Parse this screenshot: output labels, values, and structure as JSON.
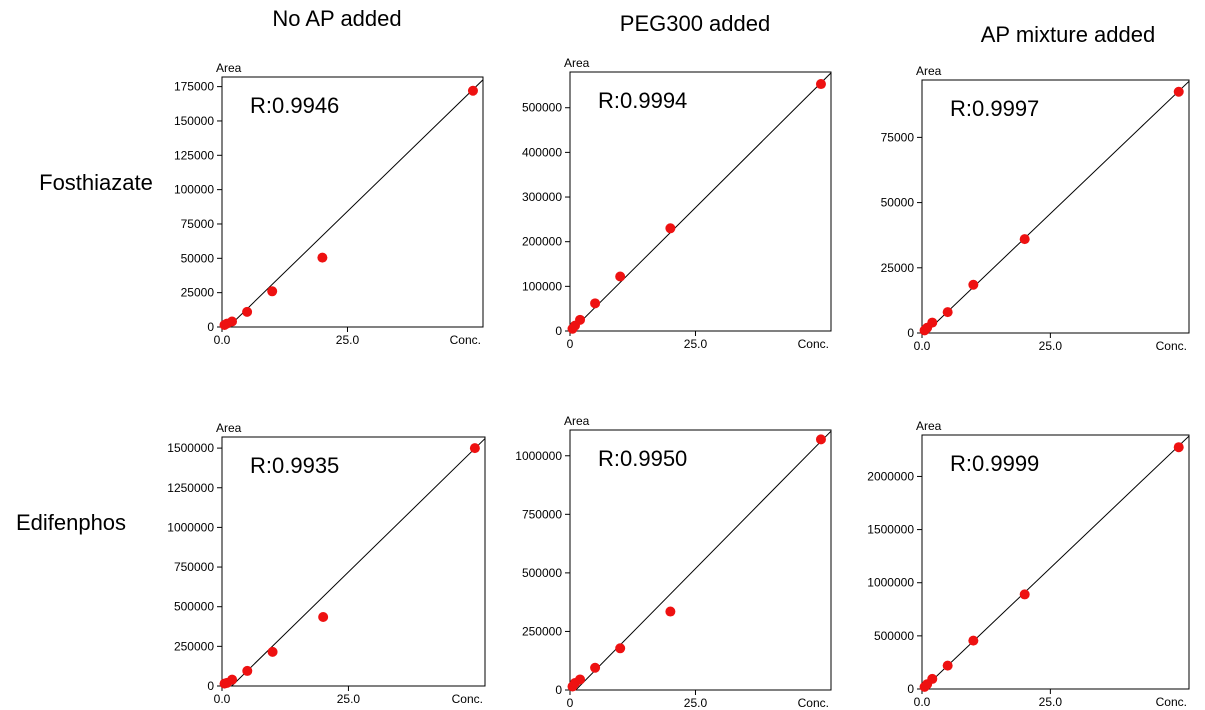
{
  "column_titles": [
    "No AP added",
    "PEG300 added",
    "AP mixture added"
  ],
  "row_titles": [
    "Fosthiazate",
    "Edifenphos"
  ],
  "chart_data": [
    {
      "type": "scatter",
      "row": 0,
      "col": 0,
      "r_text": "R:0.9946",
      "xlabel": "Conc.",
      "ylabel": "Area",
      "xlim": [
        0,
        52
      ],
      "ylim": [
        0,
        182000
      ],
      "x_ticks": [
        0,
        25
      ],
      "x_tick_labels": [
        "0.0",
        "25.0"
      ],
      "y_ticks": [
        0,
        25000,
        50000,
        75000,
        100000,
        125000,
        150000,
        175000
      ],
      "y_tick_labels": [
        "0",
        "25000",
        "50000",
        "75000",
        "100000",
        "125000",
        "150000",
        "175000"
      ],
      "points": [
        [
          0.5,
          1500
        ],
        [
          1,
          2500
        ],
        [
          2,
          4000
        ],
        [
          5,
          11000
        ],
        [
          10,
          26000
        ],
        [
          20,
          50500
        ],
        [
          50,
          172000
        ]
      ],
      "fit_line": [
        [
          0,
          -4500
        ],
        [
          52,
          180000
        ]
      ]
    },
    {
      "type": "scatter",
      "row": 0,
      "col": 1,
      "r_text": "R:0.9994",
      "xlabel": "Conc.",
      "ylabel": "Area",
      "xlim": [
        0,
        52
      ],
      "ylim": [
        0,
        580000
      ],
      "x_ticks": [
        0,
        25
      ],
      "x_tick_labels": [
        "0",
        "25.0"
      ],
      "y_ticks": [
        0,
        100000,
        200000,
        300000,
        400000,
        500000
      ],
      "y_tick_labels": [
        "0",
        "100000",
        "200000",
        "300000",
        "400000",
        "500000"
      ],
      "points": [
        [
          0.5,
          5000
        ],
        [
          1,
          12000
        ],
        [
          2,
          25000
        ],
        [
          5,
          62000
        ],
        [
          10,
          122000
        ],
        [
          20,
          230000
        ],
        [
          50,
          553000
        ]
      ],
      "fit_line": [
        [
          0,
          -3000
        ],
        [
          52,
          578000
        ]
      ]
    },
    {
      "type": "scatter",
      "row": 0,
      "col": 2,
      "r_text": "R:0.9997",
      "xlabel": "Conc.",
      "ylabel": "Area",
      "xlim": [
        0,
        52
      ],
      "ylim": [
        0,
        97000
      ],
      "x_ticks": [
        0,
        25
      ],
      "x_tick_labels": [
        "0.0",
        "25.0"
      ],
      "y_ticks": [
        0,
        25000,
        50000,
        75000
      ],
      "y_tick_labels": [
        "0",
        "25000",
        "50000",
        "75000"
      ],
      "points": [
        [
          0.5,
          1000
        ],
        [
          1,
          2000
        ],
        [
          2,
          4000
        ],
        [
          5,
          8000
        ],
        [
          10,
          18500
        ],
        [
          20,
          36000
        ],
        [
          50,
          92500
        ]
      ],
      "fit_line": [
        [
          0,
          -1200
        ],
        [
          52,
          96500
        ]
      ]
    },
    {
      "type": "scatter",
      "row": 1,
      "col": 0,
      "r_text": "R:0.9935",
      "xlabel": "Conc.",
      "ylabel": "Area",
      "xlim": [
        0,
        52
      ],
      "ylim": [
        0,
        1570000
      ],
      "x_ticks": [
        0,
        25
      ],
      "x_tick_labels": [
        "0.0",
        "25.0"
      ],
      "y_ticks": [
        0,
        250000,
        500000,
        750000,
        1000000,
        1250000,
        1500000
      ],
      "y_tick_labels": [
        "0",
        "250000",
        "500000",
        "750000",
        "1000000",
        "1250000",
        "1500000"
      ],
      "points": [
        [
          0.5,
          15000
        ],
        [
          1,
          20000
        ],
        [
          2,
          40000
        ],
        [
          5,
          95000
        ],
        [
          10,
          215000
        ],
        [
          20,
          435000
        ],
        [
          50,
          1500000
        ]
      ],
      "fit_line": [
        [
          0,
          -60000
        ],
        [
          52,
          1560000
        ]
      ]
    },
    {
      "type": "scatter",
      "row": 1,
      "col": 1,
      "r_text": "R:0.9950",
      "xlabel": "Conc.",
      "ylabel": "Area",
      "xlim": [
        0,
        52
      ],
      "ylim": [
        0,
        1110000
      ],
      "x_ticks": [
        0,
        25
      ],
      "x_tick_labels": [
        "0",
        "25.0"
      ],
      "y_ticks": [
        0,
        250000,
        500000,
        750000,
        1000000
      ],
      "y_tick_labels": [
        "0",
        "250000",
        "500000",
        "750000",
        "1000000"
      ],
      "points": [
        [
          0.5,
          15000
        ],
        [
          1,
          30000
        ],
        [
          2,
          45000
        ],
        [
          5,
          95000
        ],
        [
          10,
          178000
        ],
        [
          20,
          335000
        ],
        [
          50,
          1070000
        ]
      ],
      "fit_line": [
        [
          0,
          -25000
        ],
        [
          52,
          1105000
        ]
      ]
    },
    {
      "type": "scatter",
      "row": 1,
      "col": 2,
      "r_text": "R:0.9999",
      "xlabel": "Conc.",
      "ylabel": "Area",
      "xlim": [
        0,
        52
      ],
      "ylim": [
        0,
        2390000
      ],
      "x_ticks": [
        0,
        25
      ],
      "x_tick_labels": [
        "0.0",
        "25.0"
      ],
      "y_ticks": [
        0,
        500000,
        1000000,
        1500000,
        2000000
      ],
      "y_tick_labels": [
        "0",
        "500000",
        "1000000",
        "1500000",
        "2000000"
      ],
      "points": [
        [
          0.5,
          20000
        ],
        [
          1,
          45000
        ],
        [
          2,
          95000
        ],
        [
          5,
          220000
        ],
        [
          10,
          455000
        ],
        [
          20,
          890000
        ],
        [
          50,
          2275000
        ]
      ],
      "fit_line": [
        [
          0,
          -10000
        ],
        [
          52,
          2380000
        ]
      ]
    }
  ]
}
